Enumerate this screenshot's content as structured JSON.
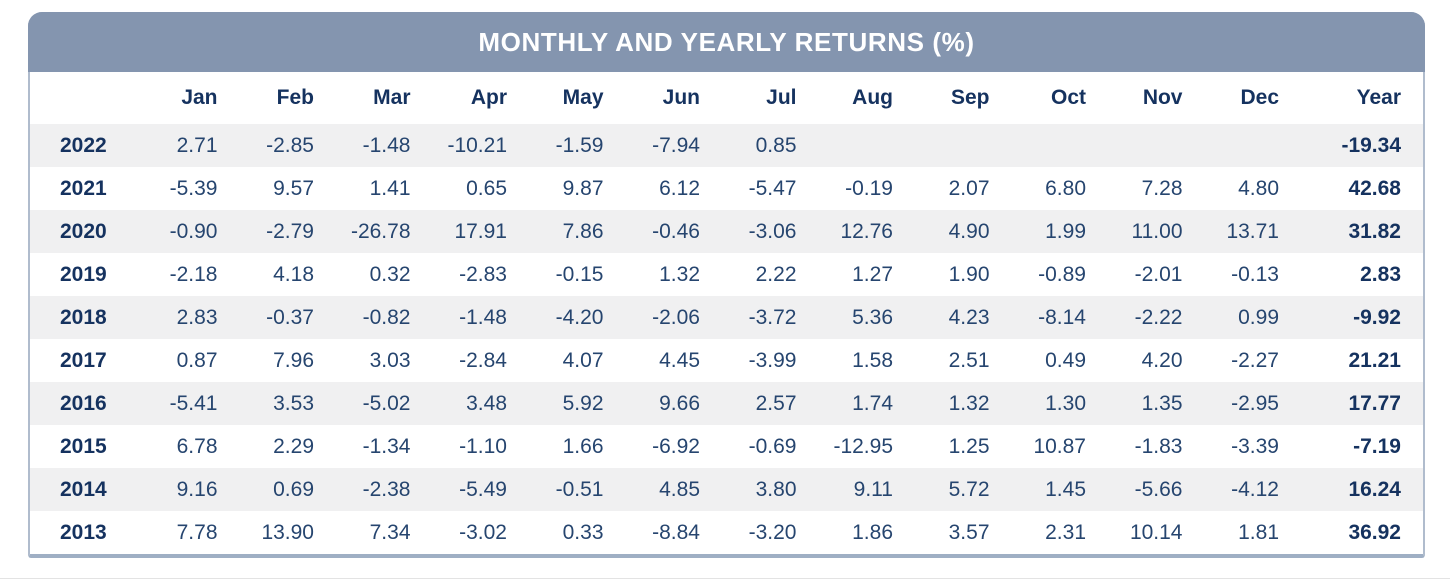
{
  "title": "MONTHLY AND YEARLY RETURNS (%)",
  "chart_data": {
    "type": "table",
    "title": "MONTHLY AND YEARLY RETURNS (%)",
    "columns": [
      "",
      "Jan",
      "Feb",
      "Mar",
      "Apr",
      "May",
      "Jun",
      "Jul",
      "Aug",
      "Sep",
      "Oct",
      "Nov",
      "Dec",
      "Year"
    ],
    "rows": [
      {
        "year": "2022",
        "monthly": [
          "2.71",
          "-2.85",
          "-1.48",
          "-10.21",
          "-1.59",
          "-7.94",
          "0.85",
          "",
          "",
          "",
          "",
          ""
        ],
        "yearly": "-19.34"
      },
      {
        "year": "2021",
        "monthly": [
          "-5.39",
          "9.57",
          "1.41",
          "0.65",
          "9.87",
          "6.12",
          "-5.47",
          "-0.19",
          "2.07",
          "6.80",
          "7.28",
          "4.80"
        ],
        "yearly": "42.68"
      },
      {
        "year": "2020",
        "monthly": [
          "-0.90",
          "-2.79",
          "-26.78",
          "17.91",
          "7.86",
          "-0.46",
          "-3.06",
          "12.76",
          "4.90",
          "1.99",
          "11.00",
          "13.71"
        ],
        "yearly": "31.82"
      },
      {
        "year": "2019",
        "monthly": [
          "-2.18",
          "4.18",
          "0.32",
          "-2.83",
          "-0.15",
          "1.32",
          "2.22",
          "1.27",
          "1.90",
          "-0.89",
          "-2.01",
          "-0.13"
        ],
        "yearly": "2.83"
      },
      {
        "year": "2018",
        "monthly": [
          "2.83",
          "-0.37",
          "-0.82",
          "-1.48",
          "-4.20",
          "-2.06",
          "-3.72",
          "5.36",
          "4.23",
          "-8.14",
          "-2.22",
          "0.99"
        ],
        "yearly": "-9.92"
      },
      {
        "year": "2017",
        "monthly": [
          "0.87",
          "7.96",
          "3.03",
          "-2.84",
          "4.07",
          "4.45",
          "-3.99",
          "1.58",
          "2.51",
          "0.49",
          "4.20",
          "-2.27"
        ],
        "yearly": "21.21"
      },
      {
        "year": "2016",
        "monthly": [
          "-5.41",
          "3.53",
          "-5.02",
          "3.48",
          "5.92",
          "9.66",
          "2.57",
          "1.74",
          "1.32",
          "1.30",
          "1.35",
          "-2.95"
        ],
        "yearly": "17.77"
      },
      {
        "year": "2015",
        "monthly": [
          "6.78",
          "2.29",
          "-1.34",
          "-1.10",
          "1.66",
          "-6.92",
          "-0.69",
          "-12.95",
          "1.25",
          "10.87",
          "-1.83",
          "-3.39"
        ],
        "yearly": "-7.19"
      },
      {
        "year": "2014",
        "monthly": [
          "9.16",
          "0.69",
          "-2.38",
          "-5.49",
          "-0.51",
          "4.85",
          "3.80",
          "9.11",
          "5.72",
          "1.45",
          "-5.66",
          "-4.12"
        ],
        "yearly": "16.24"
      },
      {
        "year": "2013",
        "monthly": [
          "7.78",
          "13.90",
          "7.34",
          "-3.02",
          "0.33",
          "-8.84",
          "-3.20",
          "1.86",
          "3.57",
          "2.31",
          "10.14",
          "1.81"
        ],
        "yearly": "36.92"
      }
    ]
  },
  "colors": {
    "header_bg": "#8495af",
    "header_text": "#ffffff",
    "label_text": "#15325f",
    "value_text": "#26456f",
    "row_stripe": "#f0f0f1",
    "card_border": "#b0bccd",
    "bottom_border": "#9fafc4"
  }
}
